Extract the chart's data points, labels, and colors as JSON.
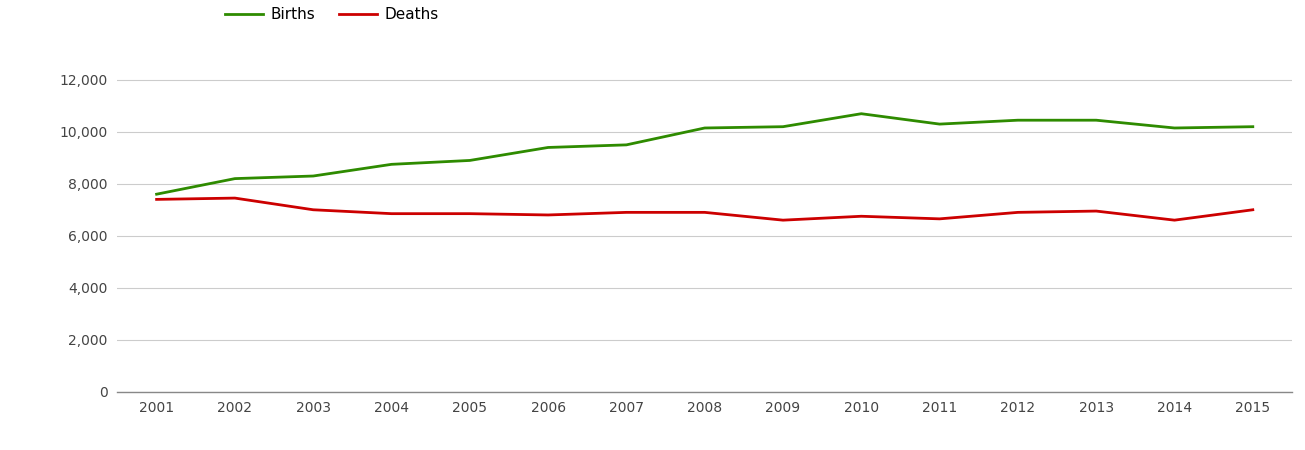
{
  "years": [
    2001,
    2002,
    2003,
    2004,
    2005,
    2006,
    2007,
    2008,
    2009,
    2010,
    2011,
    2012,
    2013,
    2014,
    2015
  ],
  "births": [
    7600,
    8200,
    8300,
    8750,
    8900,
    9400,
    9500,
    10150,
    10200,
    10700,
    10300,
    10450,
    10450,
    10150,
    10200
  ],
  "deaths": [
    7400,
    7450,
    7000,
    6850,
    6850,
    6800,
    6900,
    6900,
    6600,
    6750,
    6650,
    6900,
    6950,
    6600,
    7000
  ],
  "births_color": "#2e8b00",
  "deaths_color": "#cc0000",
  "line_width": 2.0,
  "ylim": [
    0,
    13000
  ],
  "yticks": [
    0,
    2000,
    4000,
    6000,
    8000,
    10000,
    12000
  ],
  "background_color": "#ffffff",
  "grid_color": "#cccccc",
  "legend_labels": [
    "Births",
    "Deaths"
  ],
  "xlim": [
    2000.5,
    2015.5
  ]
}
